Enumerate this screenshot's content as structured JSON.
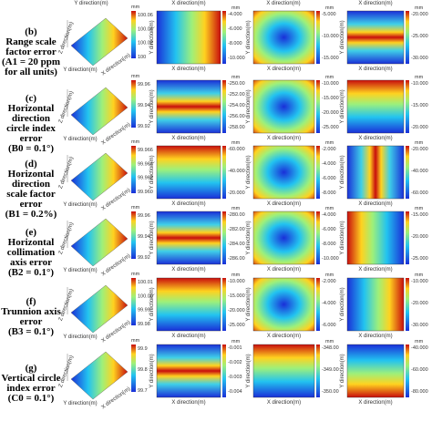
{
  "axes": {
    "x": "X direction(m)",
    "y": "Y direction(m)",
    "z": "Z direction(m)",
    "unit": "mm"
  },
  "rows": [
    {
      "letter": "(b)",
      "label": [
        "Range scale",
        "factor error",
        "(A1 = 20 ppm",
        "for all units)"
      ],
      "z_ticks": [
        "100.06",
        "100.04",
        "100.02",
        "100"
      ],
      "panels": [
        {
          "ticks": [
            "-4.000",
            "-6.000",
            "-8.000",
            "-10.000"
          ]
        },
        {
          "ticks": [
            "-5.000",
            "-10.000",
            "-15.000"
          ]
        },
        {
          "ticks": [
            "-20.000",
            "-25.000",
            "-30.000"
          ]
        }
      ]
    },
    {
      "letter": "(c)",
      "label": [
        "Horizontal",
        "direction",
        "circle index",
        "error",
        "(B0 = 0.1°)"
      ],
      "z_ticks": [
        "99.96",
        "99.94",
        "99.92"
      ],
      "panels": [
        {
          "ticks": [
            "-250.00",
            "-252.00",
            "-254.00",
            "-256.00",
            "-258.00"
          ]
        },
        {
          "ticks": [
            "-10.000",
            "-15.000",
            "-20.000",
            "-25.000"
          ]
        },
        {
          "ticks": [
            "-10.000",
            "-15.000",
            "-20.000"
          ]
        }
      ]
    },
    {
      "letter": "(d)",
      "label": [
        "Horizontal",
        "direction",
        "scale factor",
        "error",
        "(B1 = 0.2%)"
      ],
      "z_ticks": [
        "99.966",
        "99.964",
        "99.962",
        "99.960"
      ],
      "panels": [
        {
          "ticks": [
            "-60.000",
            "-40.000",
            "-20.000"
          ]
        },
        {
          "ticks": [
            "-2.000",
            "-4.000",
            "-6.000",
            "-8.000"
          ]
        },
        {
          "ticks": [
            "-20.000",
            "-40.000",
            "-60.000"
          ]
        }
      ]
    },
    {
      "letter": "(e)",
      "label": [
        "Horizontal",
        "collimation",
        "axis error",
        "(B2 = 0.1°)"
      ],
      "z_ticks": [
        "99.96",
        "99.94",
        "99.92"
      ],
      "panels": [
        {
          "ticks": [
            "-280.00",
            "-282.00",
            "-284.00",
            "-286.00"
          ]
        },
        {
          "ticks": [
            "-4.000",
            "-6.000",
            "-8.000",
            "-10.000"
          ]
        },
        {
          "ticks": [
            "-15.000",
            "-20.000",
            "-25.000"
          ]
        }
      ]
    },
    {
      "letter": "(f)",
      "label": [
        "Trunnion axis",
        "error",
        "(B3 = 0.1°)"
      ],
      "z_ticks": [
        "100.01",
        "100.00",
        "99.99",
        "99.98"
      ],
      "panels": [
        {
          "ticks": [
            "-10.000",
            "-15.000",
            "-20.000",
            "-25.000"
          ]
        },
        {
          "ticks": [
            "-2.000",
            "-4.000",
            "-6.000"
          ]
        },
        {
          "ticks": [
            "-10.000",
            "-20.000",
            "-30.000"
          ]
        }
      ]
    },
    {
      "letter": "(g)",
      "label": [
        "Vertical circle",
        "index error",
        "(C0 = 0.1°)"
      ],
      "z_ticks": [
        "99.9",
        "99.8",
        "99.7"
      ],
      "panels": [
        {
          "ticks": [
            "-0.001",
            "-0.002",
            "-0.003",
            "-0.004"
          ]
        },
        {
          "ticks": [
            "-348.00",
            "-349.00",
            "-350.00"
          ]
        },
        {
          "ticks": [
            "-40.000",
            "-60.000",
            "-80.000"
          ]
        }
      ]
    }
  ]
}
